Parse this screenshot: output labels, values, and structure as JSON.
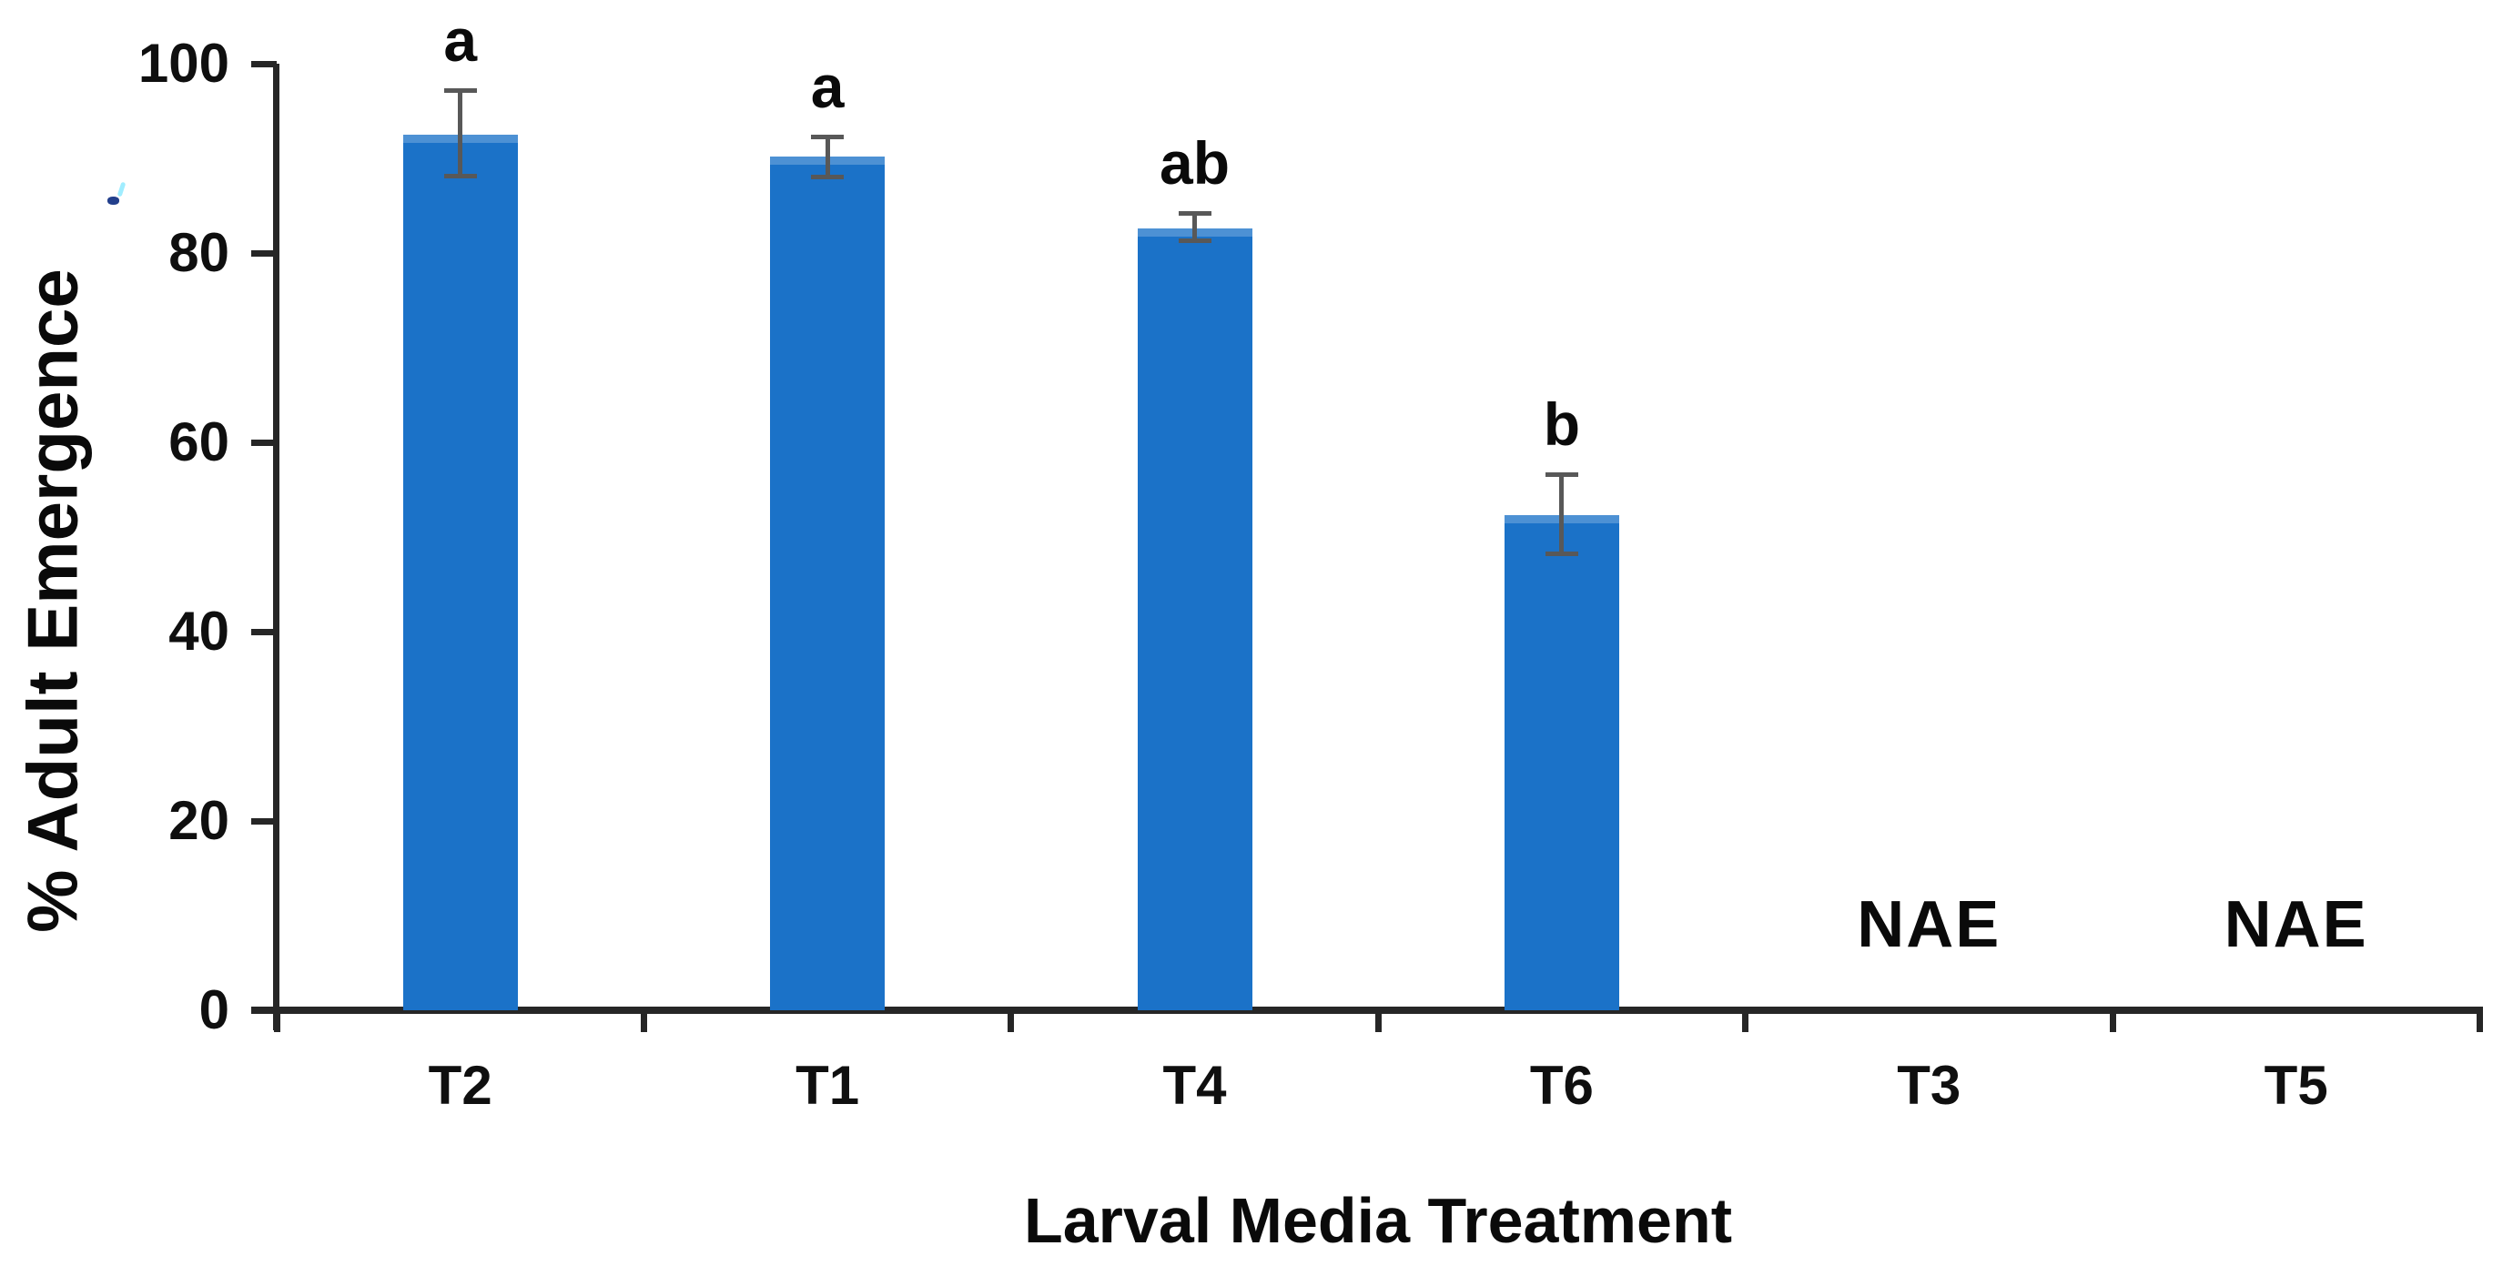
{
  "chart_data": {
    "type": "bar",
    "title": "",
    "xlabel": "Larval Media Treatment",
    "ylabel": "% Adult Emergence",
    "categories": [
      "T2",
      "T1",
      "T4",
      "T6",
      "T3",
      "T5"
    ],
    "values": [
      92.5,
      90.2,
      82.6,
      52.3,
      0,
      0
    ],
    "error_low": [
      88.1,
      88.0,
      81.3,
      48.2,
      null,
      null
    ],
    "error_high": [
      97.2,
      92.3,
      84.2,
      56.6,
      null,
      null
    ],
    "sig_letters": [
      "a",
      "a",
      "ab",
      "b",
      "",
      ""
    ],
    "annotations": [
      "",
      "",
      "",
      "",
      "NAE",
      "NAE"
    ],
    "ylim": [
      0,
      100
    ],
    "yticks": [
      0,
      20,
      40,
      60,
      80,
      100
    ],
    "grid": false,
    "legend": null,
    "bar_color": "#1b72c8",
    "error_bar_color": "#585858",
    "axis_color": "#262626",
    "text_color": "#0a0a0a"
  }
}
